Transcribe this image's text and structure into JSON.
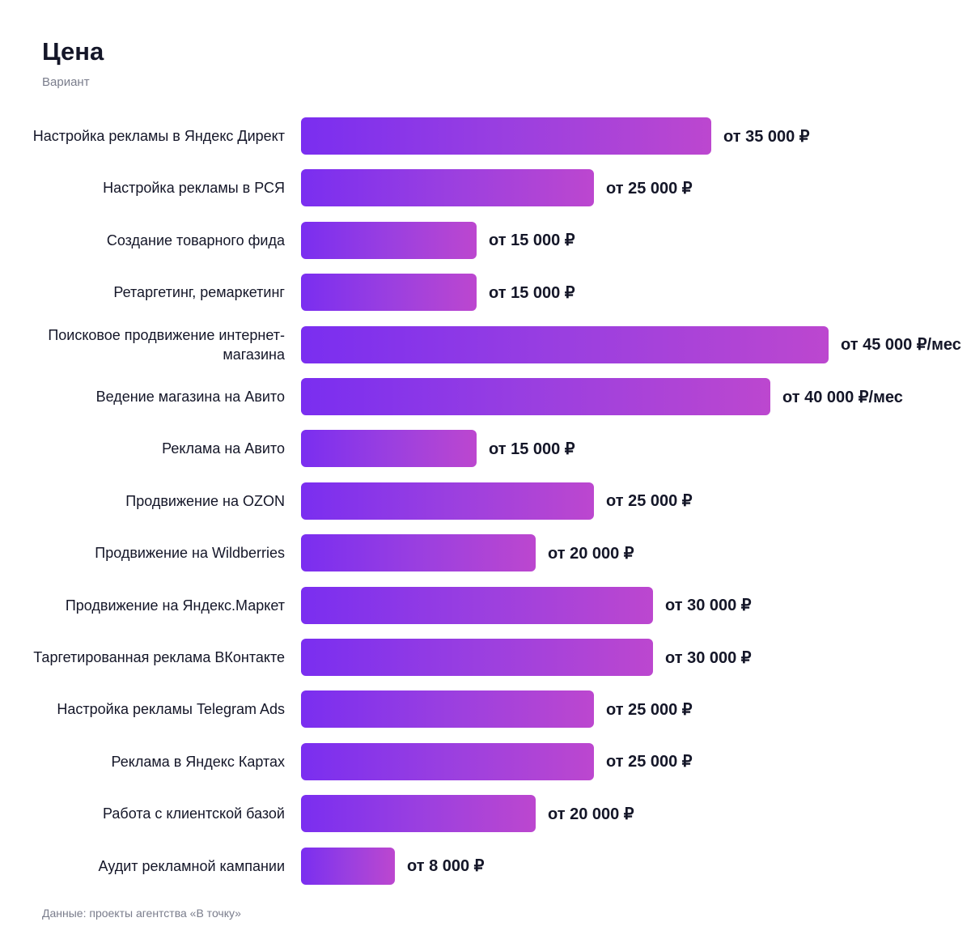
{
  "chart_data": {
    "type": "bar",
    "orientation": "horizontal",
    "title": "Цена",
    "subtitle": "Вариант",
    "source": "Данные: проекты агентства «В точку»",
    "colors": {
      "bar_start": "#7a2ef0",
      "bar_end": "#bc47cf"
    },
    "categories": [
      "Настройка рекламы в Яндекс Директ",
      "Настройка рекламы в РСЯ",
      "Создание товарного фида",
      "Ретаргетинг, ремаркетинг",
      "Поисковое продвижение интернет-магазина",
      "Ведение магазина на Авито",
      "Реклама на Авито",
      "Продвижение на OZON",
      "Продвижение на Wildberries",
      "Продвижение на Яндекс.Маркет",
      "Таргетированная реклама ВКонтакте",
      "Настройка рекламы Telegram Ads",
      "Реклама в Яндекс Картах",
      "Работа с клиентской базой",
      "Аудит рекламной кампании"
    ],
    "values": [
      35000,
      25000,
      15000,
      15000,
      45000,
      40000,
      15000,
      25000,
      20000,
      30000,
      30000,
      25000,
      25000,
      20000,
      8000
    ],
    "data_labels": [
      "от 35 000 ₽",
      "от 25 000 ₽",
      "от 15 000 ₽",
      "от 15 000 ₽",
      "от 45 000 ₽/мес",
      "от 40 000 ₽/мес",
      "от 15 000 ₽",
      "от 25 000 ₽",
      "от 20 000 ₽",
      "от 30 000 ₽",
      "от 30 000 ₽",
      "от 25 000 ₽",
      "от 25 000 ₽",
      "от 20 000 ₽",
      "от 8 000 ₽"
    ],
    "xlim": [
      0,
      45000
    ],
    "grid": false,
    "legend": "none"
  }
}
